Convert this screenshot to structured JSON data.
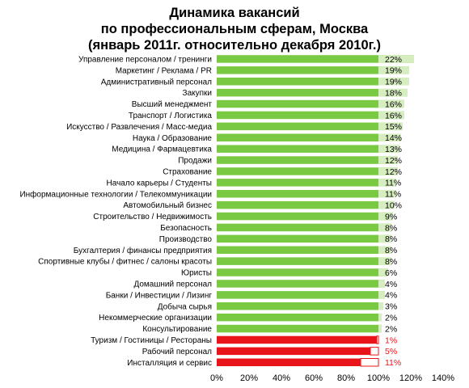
{
  "chart_data": {
    "type": "bar",
    "orientation": "horizontal",
    "title": [
      "Динамика вакансий",
      "по профессиональным сферам, Москва",
      "(январь 2011г. относительно декабря 2010г.)"
    ],
    "categories": [
      "Управление персоналом / тренинги",
      "Маркетинг / Реклама / PR",
      "Административный персонал",
      "Закупки",
      "Высший менеджмент",
      "Транспорт / Логистика",
      "Искусство / Развлечения / Масс-медиа",
      "Наука / Образование",
      "Медицина / Фармацевтика",
      "Продажи",
      "Страхование",
      "Начало карьеры / Студенты",
      "Информационные технологии / Телекоммуникации",
      "Автомобильный бизнес",
      "Строительство / Недвижимость",
      "Безопасность",
      "Производство",
      "Бухгалтерия / финансы предприятия",
      "Спортивные клубы / фитнес / салоны красоты",
      "Юристы",
      "Домашний персонал",
      "Банки / Инвестиции / Лизинг",
      "Добыча сырья",
      "Некоммерческие организации",
      "Консультирование",
      "Туризм / Гостиницы / Рестораны",
      "Рабочий персонал",
      "Инсталляция и сервис"
    ],
    "values": [
      122,
      119,
      119,
      118,
      116,
      116,
      115,
      114,
      113,
      112,
      112,
      111,
      111,
      110,
      109,
      108,
      108,
      108,
      108,
      106,
      104,
      104,
      103,
      102,
      102,
      99,
      95,
      89
    ],
    "labels": [
      "22%",
      "19%",
      "19%",
      "18%",
      "16%",
      "16%",
      "15%",
      "14%",
      "13%",
      "12%",
      "12%",
      "11%",
      "11%",
      "10%",
      "9%",
      "8%",
      "8%",
      "8%",
      "8%",
      "6%",
      "4%",
      "4%",
      "3%",
      "2%",
      "2%",
      "1%",
      "5%",
      "11%"
    ],
    "xlim": [
      0,
      140
    ],
    "xticks": [
      "0%",
      "20%",
      "40%",
      "60%",
      "80%",
      "100%",
      "120%",
      "140%"
    ],
    "colors": {
      "positive": "#7ac943",
      "positive_light": "#d6eebf",
      "negative": "#e8141a",
      "negative_label": "#e8141a",
      "label": "#000000"
    }
  }
}
